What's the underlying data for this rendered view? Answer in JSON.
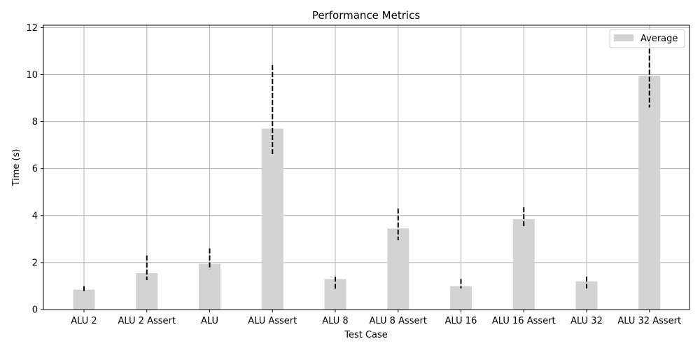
{
  "chart_data": {
    "type": "bar",
    "title": "Performance Metrics",
    "xlabel": "Test Case",
    "ylabel": "Time (s)",
    "categories": [
      "ALU 2",
      "ALU 2 Assert",
      "ALU",
      "ALU Assert",
      "ALU 8",
      "ALU 8 Assert",
      "ALU 16",
      "ALU 16 Assert",
      "ALU 32",
      "ALU 32 Assert"
    ],
    "series": [
      {
        "name": "Average",
        "values": [
          0.85,
          1.55,
          1.95,
          7.7,
          1.3,
          3.45,
          1.0,
          3.85,
          1.2,
          9.95
        ],
        "color": "#d3d3d3"
      }
    ],
    "error_ranges": [
      [
        0.7,
        1.0
      ],
      [
        1.25,
        2.3
      ],
      [
        1.7,
        2.6
      ],
      [
        6.55,
        10.4
      ],
      [
        0.85,
        1.4
      ],
      [
        2.95,
        4.3
      ],
      [
        0.9,
        1.3
      ],
      [
        3.5,
        4.35
      ],
      [
        0.9,
        1.4
      ],
      [
        8.6,
        11.4
      ]
    ],
    "yticks": [
      0,
      2,
      4,
      6,
      8,
      10,
      12
    ],
    "ylim": [
      0,
      12.1
    ],
    "grid": true,
    "legend": "top-right",
    "error_style": "dashed black"
  }
}
